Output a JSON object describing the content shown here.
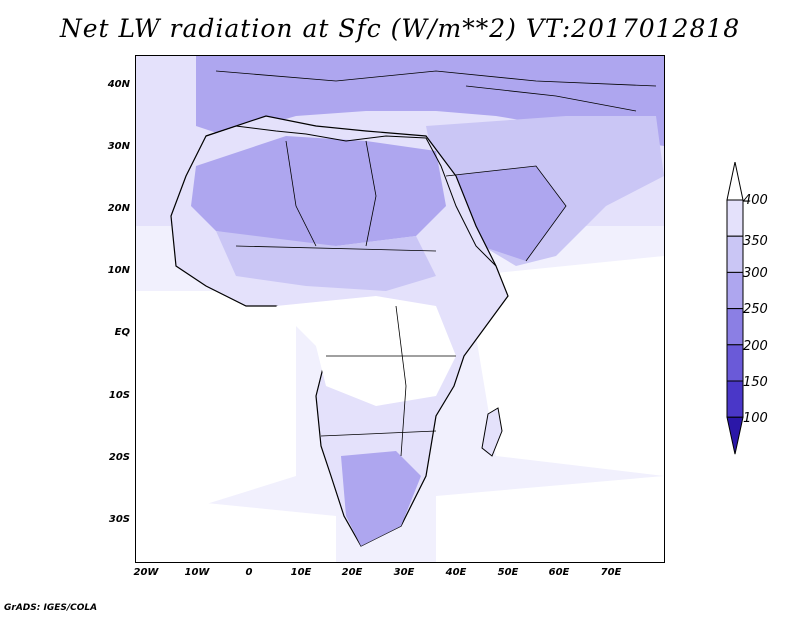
{
  "title": "Net LW radiation at Sfc (W/m**2) VT:2017012818",
  "credit": "GrADS: IGES/COLA",
  "latitude_labels": [
    "40N",
    "30N",
    "20N",
    "10N",
    "EQ",
    "10S",
    "20S",
    "30S"
  ],
  "longitude_labels": [
    "20W",
    "10W",
    "0",
    "10E",
    "20E",
    "30E",
    "40E",
    "50E",
    "60E",
    "70E"
  ],
  "colorbar": {
    "levels": [
      "400",
      "350",
      "300",
      "250",
      "200",
      "150",
      "100"
    ],
    "colors": [
      "#ffffff",
      "#e4e1fb",
      "#cac6f5",
      "#aea6ef",
      "#8b7fe4",
      "#6a5ad8",
      "#4a37c8",
      "#2b17a8"
    ]
  },
  "map": {
    "lat_range": [
      -37,
      45
    ],
    "lon_range": [
      -23,
      80
    ],
    "background_color": "#ffffff"
  }
}
